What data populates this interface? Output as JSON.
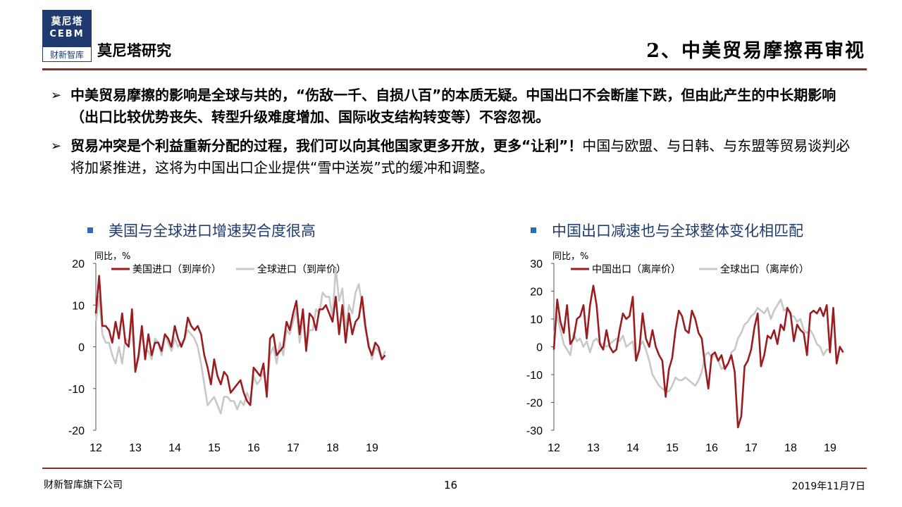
{
  "header": {
    "logo_line1": "莫尼塔",
    "logo_line2": "CEBM",
    "logo_line3": "财新智库",
    "brand": "莫尼塔研究",
    "title": "2、中美贸易摩擦再审视"
  },
  "bullets": [
    {
      "bold": "中美贸易摩擦的影响是全球与共的，“伤敌一千、自损八百”的本质无疑。中国出口不会断崖下跌，但由此产生的中长期影响（出口比较优势丧失、转型升级难度增加、国际收支结构转变等）不容忽视。",
      "normal": ""
    },
    {
      "bold": "贸易冲突是个利益重新分配的过程，我们可以向其他国家更多开放，更多“让利”！",
      "normal": "中国与欧盟、与日韩、与东盟等贸易谈判必将加紧推进，这将为中国出口企业提供“雪中送炭”式的缓冲和调整。"
    }
  ],
  "colors": {
    "series_red": "#9b1c1f",
    "series_gray": "#c8c8c8",
    "accent_blue": "#2e6bb5",
    "rule": "#8c2b2b"
  },
  "chart_data": [
    {
      "type": "line",
      "title": "美国与全球进口增速契合度很高",
      "ylabel": "同比，%",
      "ylim": [
        -20,
        20
      ],
      "yticks": [
        "20",
        "10",
        "0",
        "-10",
        "-20"
      ],
      "xticks": [
        "12",
        "13",
        "14",
        "15",
        "16",
        "17",
        "18",
        "19"
      ],
      "x_start": 2012,
      "step_years": 0.0833,
      "series": [
        {
          "name": "美国进口（到岸价）",
          "values": [
            8,
            17,
            5,
            5,
            4,
            1,
            6,
            2,
            8,
            1,
            0,
            9,
            -6,
            -2,
            5,
            -3,
            3,
            -2,
            1,
            1,
            -1,
            3,
            2,
            0,
            5,
            2,
            0,
            2,
            7,
            5,
            4,
            5,
            3,
            -2,
            -5,
            -9,
            -3,
            -7,
            -9,
            -6,
            -7,
            -11,
            -10,
            -9,
            -8,
            -11,
            -13,
            -14,
            -5,
            -6,
            -7,
            -4,
            -12,
            2,
            3,
            -2,
            -1,
            0,
            6,
            4,
            8,
            11,
            3,
            9,
            -1,
            8,
            7,
            4,
            9,
            9,
            10,
            8,
            6,
            12,
            3,
            10,
            1,
            8,
            3,
            6,
            7,
            12,
            5,
            0,
            -2,
            1,
            0,
            -3,
            -2
          ]
        },
        {
          "name": "全球进口（到岸价）",
          "values": [
            6,
            12,
            3,
            1,
            1,
            -2,
            -4,
            0,
            -4,
            2,
            1,
            5,
            -5,
            -3,
            3,
            -1,
            -1,
            -3,
            2,
            1,
            -2,
            3,
            1,
            -1,
            2,
            0,
            1,
            2,
            4,
            3,
            2,
            0,
            -4,
            -9,
            -14,
            -13,
            -12,
            -14,
            -16,
            -12,
            -12,
            -13,
            -13,
            -15,
            -13,
            -14,
            -11,
            -13,
            -7,
            -9,
            -8,
            -6,
            -10,
            -2,
            0,
            -4,
            1,
            -2,
            4,
            3,
            6,
            9,
            1,
            7,
            0,
            4,
            4,
            9,
            8,
            13,
            12,
            12,
            7,
            19,
            11,
            14,
            4,
            10,
            8,
            13,
            15,
            10,
            4,
            1,
            -3,
            0,
            -1,
            -3,
            -1
          ]
        }
      ]
    },
    {
      "type": "line",
      "title": "中国出口减速也与全球整体变化相匹配",
      "ylabel": "同比，%",
      "ylim": [
        -30,
        30
      ],
      "yticks": [
        "30",
        "20",
        "10",
        "0",
        "-10",
        "-20",
        "-30"
      ],
      "xticks": [
        "12",
        "13",
        "14",
        "15",
        "16",
        "17",
        "18",
        "19"
      ],
      "x_start": 2012,
      "step_years": 0.0833,
      "series": [
        {
          "name": "中国出口（离岸价）",
          "values": [
            -1,
            17,
            9,
            5,
            15,
            1,
            3,
            10,
            11,
            15,
            3,
            15,
            22,
            15,
            1,
            -1,
            6,
            0,
            -2,
            -1,
            6,
            12,
            10,
            11,
            18,
            -5,
            -1,
            12,
            3,
            0,
            6,
            0,
            -3,
            -5,
            -18,
            -8,
            -4,
            6,
            13,
            11,
            6,
            5,
            13,
            10,
            5,
            3,
            -7,
            -15,
            -3,
            -2,
            -5,
            -3,
            -8,
            -6,
            -3,
            -9,
            -29,
            -25,
            -7,
            -5,
            -1,
            7,
            12,
            -7,
            -3,
            4,
            3,
            6,
            1,
            8,
            6,
            14,
            12,
            2,
            8,
            6,
            5,
            -3,
            12,
            13,
            12,
            14,
            11,
            15,
            -2,
            14,
            -6,
            0,
            -2
          ]
        },
        {
          "name": "全球出口（离岸价）",
          "values": [
            4,
            11,
            6,
            1,
            -1,
            -3,
            5,
            2,
            3,
            0,
            2,
            -2,
            2,
            3,
            1,
            1,
            0,
            1,
            2,
            3,
            2,
            4,
            0,
            1,
            2,
            -5,
            0,
            2,
            -1,
            -5,
            -10,
            -12,
            -14,
            -15,
            -16,
            -16,
            -14,
            -11,
            -12,
            -12,
            -11,
            -12,
            -13,
            -14,
            -12,
            -9,
            -3,
            -2,
            -4,
            -3,
            -5,
            -8,
            -7,
            -6,
            -2,
            -1,
            3,
            5,
            8,
            9,
            11,
            12,
            14,
            13,
            12,
            14,
            10,
            13,
            15,
            17,
            13,
            14,
            11,
            11,
            9,
            10,
            6,
            5,
            6,
            4,
            1,
            0,
            -3,
            -1,
            -1
          ]
        }
      ]
    }
  ],
  "footer": {
    "left": "财新智库旗下公司",
    "page": "16",
    "date": "2019年11月7日"
  }
}
